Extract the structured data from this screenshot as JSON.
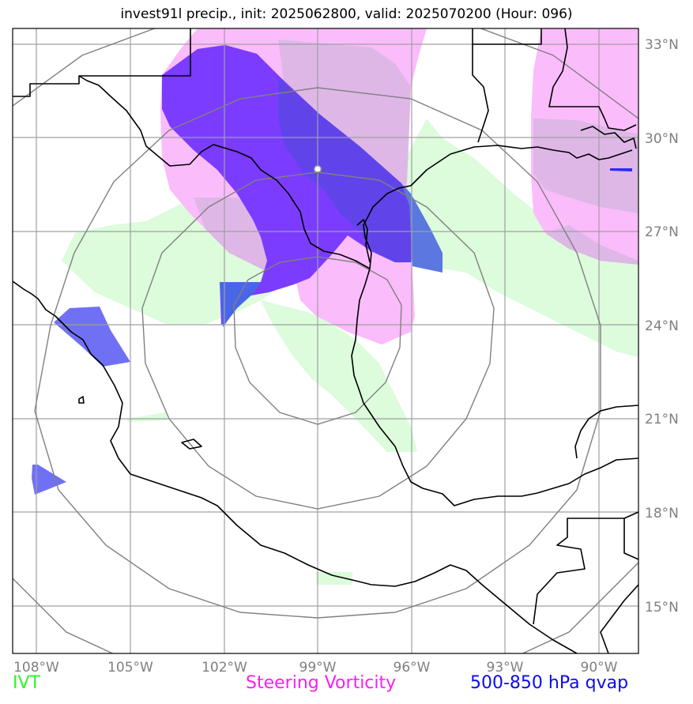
{
  "title": "invest91l precip., init: 2025062800, valid: 2025070200 (Hour: 096)",
  "legend": {
    "ivt": "IVT",
    "vorticity": "Steering Vorticity",
    "qvap": "500-850 hPa qvap"
  },
  "lat_labels": [
    "33°N",
    "30°N",
    "27°N",
    "24°N",
    "21°N",
    "18°N",
    "15°N"
  ],
  "lon_labels": [
    "108°W",
    "105°W",
    "102°W",
    "99°W",
    "96°W",
    "93°W",
    "90°W"
  ],
  "colors": {
    "ivt": "#dcfcdc",
    "vorticity": "#fbbcfb",
    "qvap": "#3333ff",
    "grid": "#a0a0a0",
    "range_rings": "#808080",
    "coast": "#000000"
  }
}
